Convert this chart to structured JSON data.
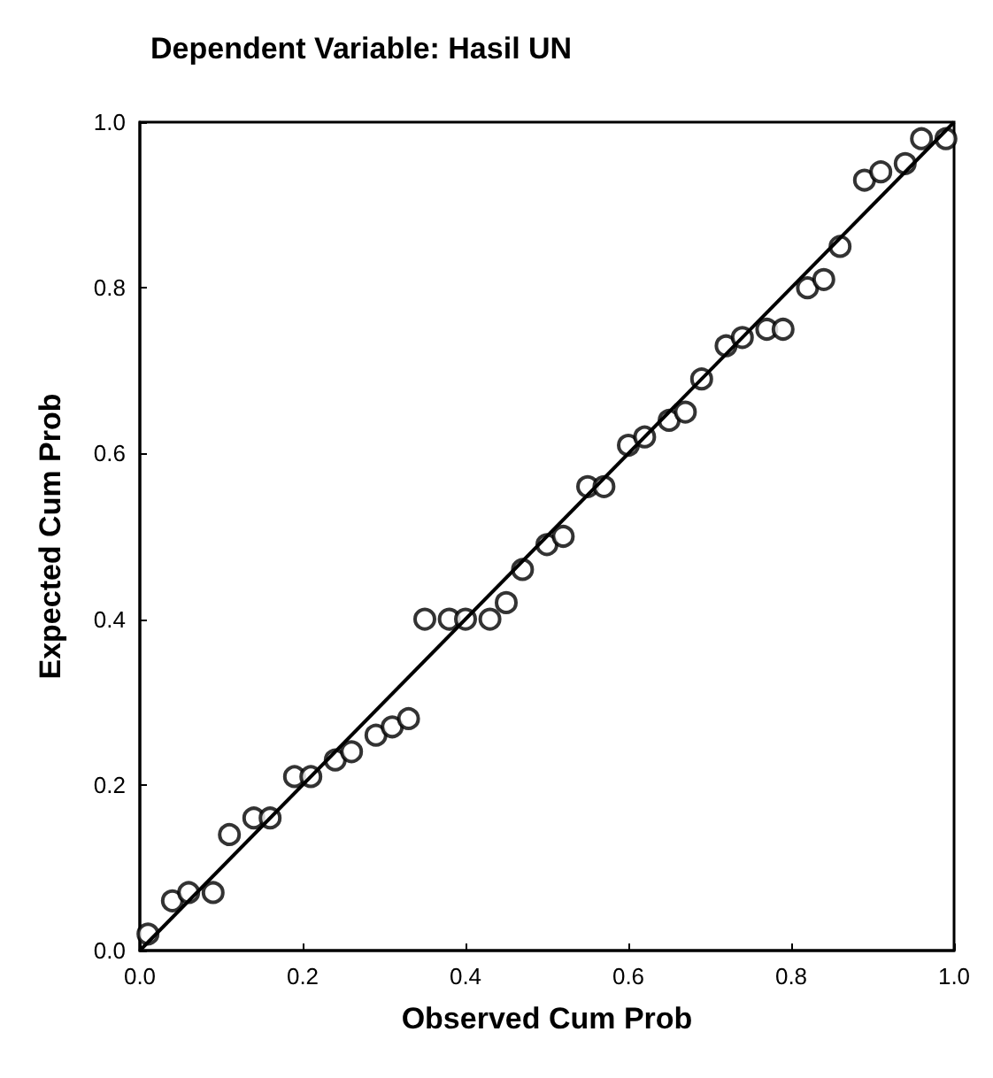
{
  "chart_data": {
    "type": "scatter",
    "title": "Dependent Variable: Hasil UN",
    "xlabel": "Observed Cum Prob",
    "ylabel": "Expected Cum Prob",
    "marker": "circle",
    "grid": false,
    "xlim": [
      0,
      1
    ],
    "ylim": [
      0,
      1
    ],
    "xticks": [
      {
        "value": 0,
        "label": "0.0"
      },
      {
        "value": 0.2,
        "label": "0.2"
      },
      {
        "value": 0.4,
        "label": "0.4"
      },
      {
        "value": 0.6,
        "label": "0.6"
      },
      {
        "value": 0.8,
        "label": "0.8"
      },
      {
        "value": 1,
        "label": "1.0"
      }
    ],
    "yticks": [
      {
        "value": 0,
        "label": "0.0"
      },
      {
        "value": 0.2,
        "label": "0.2"
      },
      {
        "value": 0.4,
        "label": "0.4"
      },
      {
        "value": 0.6,
        "label": "0.6"
      },
      {
        "value": 0.8,
        "label": "0.8"
      },
      {
        "value": 1,
        "label": "1.0"
      }
    ],
    "series": [
      {
        "color": "#000000",
        "x": [
          0.01,
          0.04,
          0.06,
          0.09,
          0.11,
          0.14,
          0.16,
          0.19,
          0.21,
          0.24,
          0.26,
          0.29,
          0.31,
          0.33,
          0.35,
          0.38,
          0.4,
          0.43,
          0.45,
          0.47,
          0.5,
          0.52,
          0.55,
          0.57,
          0.6,
          0.62,
          0.65,
          0.67,
          0.69,
          0.72,
          0.74,
          0.77,
          0.79,
          0.82,
          0.84,
          0.86,
          0.89,
          0.91,
          0.94,
          0.96,
          0.99
        ],
        "values": [
          0.02,
          0.06,
          0.07,
          0.07,
          0.14,
          0.16,
          0.16,
          0.21,
          0.21,
          0.23,
          0.24,
          0.26,
          0.27,
          0.28,
          0.4,
          0.4,
          0.4,
          0.4,
          0.42,
          0.46,
          0.49,
          0.5,
          0.56,
          0.56,
          0.61,
          0.62,
          0.64,
          0.65,
          0.69,
          0.73,
          0.74,
          0.75,
          0.75,
          0.8,
          0.81,
          0.85,
          0.93,
          0.94,
          0.95,
          0.98,
          0.98
        ]
      },
      {
        "type": "line",
        "marker": "none",
        "color": "#000000",
        "x": [
          0,
          1
        ],
        "values": [
          0,
          1
        ]
      }
    ]
  }
}
